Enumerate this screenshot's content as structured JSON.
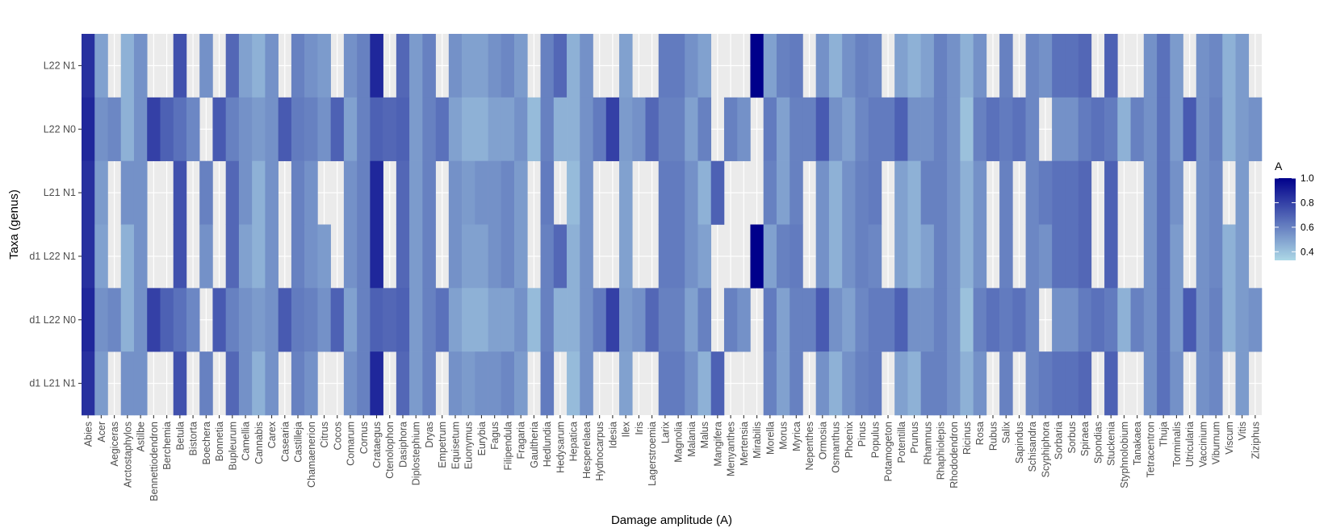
{
  "chart_data": {
    "type": "heatmap",
    "title": "",
    "xlabel": "Damage amplitude (A)",
    "ylabel": "Taxa (genus)",
    "x": [
      "Abies",
      "Acer",
      "Aegiceras",
      "Arctostaphylos",
      "Astilbe",
      "Bennettiodendron",
      "Berchemia",
      "Betula",
      "Bistorta",
      "Boechera",
      "Bonnetia",
      "Bupleurum",
      "Camellia",
      "Cannabis",
      "Carex",
      "Casearia",
      "Castilleja",
      "Chamaenerion",
      "Citrus",
      "Cocos",
      "Comarum",
      "Cornus",
      "Crataegus",
      "Ctenolophon",
      "Dasiphora",
      "Diplostephium",
      "Dryas",
      "Empetrum",
      "Equisetum",
      "Euonymus",
      "Eurybia",
      "Fagus",
      "Filipendula",
      "Fragaria",
      "Gaultheria",
      "Hedlundia",
      "Hedysarum",
      "Hepatica",
      "Hesperelaea",
      "Hydnocarpus",
      "Idesia",
      "Ilex",
      "Iris",
      "Lagerstroemia",
      "Larix",
      "Magnolia",
      "Malania",
      "Malus",
      "Mangifera",
      "Menyanthes",
      "Mertensia",
      "Mirabilis",
      "Morella",
      "Morus",
      "Myrica",
      "Nepenthes",
      "Ormosia",
      "Osmanthus",
      "Phoenix",
      "Pinus",
      "Populus",
      "Potamogeton",
      "Potentilla",
      "Prunus",
      "Rhamnus",
      "Rhaphiolepis",
      "Rhododendron",
      "Ricinus",
      "Rosa",
      "Rubus",
      "Salix",
      "Sapindus",
      "Schisandra",
      "Scyphiphora",
      "Sorbaria",
      "Sorbus",
      "Spiraea",
      "Spondias",
      "Stuckenia",
      "Styphnolobium",
      "Tanakaea",
      "Tetracentron",
      "Thuja",
      "Torminalis",
      "Utricularia",
      "Vaccinium",
      "Viburnum",
      "Viscum",
      "Vitis",
      "Ziziphus"
    ],
    "y": [
      "L22 N1",
      "L22 N0",
      "L21 N1",
      "d1 L22 N1",
      "d1 L22 N0",
      "d1 L21 N1"
    ],
    "values": {
      "L22 N1": [
        0.85,
        0.5,
        null,
        0.45,
        0.55,
        null,
        null,
        0.75,
        null,
        0.55,
        null,
        0.68,
        0.5,
        0.45,
        0.55,
        null,
        0.6,
        0.55,
        0.52,
        null,
        0.55,
        0.6,
        0.88,
        null,
        0.68,
        0.52,
        0.6,
        null,
        0.55,
        0.5,
        0.5,
        0.55,
        0.58,
        0.52,
        null,
        0.6,
        0.68,
        0.45,
        0.55,
        null,
        null,
        0.5,
        null,
        null,
        0.62,
        0.62,
        0.55,
        0.5,
        null,
        null,
        null,
        1.0,
        0.5,
        0.6,
        0.62,
        null,
        0.55,
        0.45,
        0.55,
        0.6,
        0.58,
        null,
        0.5,
        0.45,
        0.5,
        0.6,
        0.55,
        0.45,
        0.55,
        null,
        0.6,
        null,
        0.58,
        0.55,
        0.65,
        0.65,
        0.68,
        null,
        0.7,
        null,
        null,
        0.55,
        0.65,
        0.52,
        null,
        0.55,
        0.58,
        0.45,
        0.52,
        null
      ],
      "L22 N0": [
        0.88,
        0.55,
        0.58,
        0.45,
        0.55,
        0.8,
        0.7,
        0.65,
        0.58,
        null,
        0.72,
        0.6,
        0.55,
        0.52,
        0.55,
        0.72,
        0.62,
        0.6,
        0.55,
        0.7,
        0.5,
        0.6,
        0.7,
        0.68,
        0.7,
        0.52,
        0.6,
        0.65,
        0.5,
        0.45,
        0.45,
        0.5,
        0.5,
        0.55,
        0.42,
        0.6,
        0.45,
        0.45,
        0.55,
        0.62,
        0.8,
        0.52,
        0.55,
        0.68,
        0.6,
        0.6,
        0.5,
        0.6,
        null,
        0.6,
        0.55,
        null,
        0.62,
        0.5,
        0.6,
        0.6,
        0.72,
        0.55,
        0.5,
        0.58,
        0.62,
        0.62,
        0.7,
        0.55,
        0.55,
        0.6,
        0.55,
        0.4,
        0.6,
        0.65,
        0.62,
        0.65,
        0.58,
        null,
        0.55,
        0.55,
        0.62,
        0.65,
        0.62,
        0.45,
        0.6,
        0.55,
        0.65,
        0.52,
        0.72,
        0.55,
        0.6,
        0.45,
        0.52,
        0.55
      ],
      "L21 N1": [
        0.85,
        0.52,
        null,
        0.55,
        0.55,
        null,
        null,
        0.75,
        null,
        0.6,
        null,
        0.68,
        0.55,
        0.45,
        0.55,
        null,
        0.6,
        0.55,
        null,
        null,
        0.55,
        0.6,
        0.88,
        null,
        0.68,
        0.52,
        0.6,
        null,
        0.55,
        0.52,
        0.55,
        0.55,
        0.58,
        0.52,
        null,
        0.62,
        null,
        0.42,
        0.55,
        null,
        null,
        0.5,
        null,
        null,
        0.62,
        0.62,
        0.55,
        0.45,
        0.7,
        null,
        null,
        null,
        0.6,
        0.5,
        0.6,
        null,
        0.55,
        0.45,
        0.55,
        0.6,
        0.62,
        null,
        0.5,
        0.45,
        0.6,
        0.6,
        0.55,
        0.45,
        0.55,
        null,
        0.6,
        null,
        0.58,
        0.62,
        0.65,
        0.65,
        0.68,
        null,
        0.7,
        null,
        null,
        0.55,
        0.65,
        0.55,
        null,
        0.55,
        0.58,
        null,
        0.52,
        null
      ],
      "d1 L22 N1": [
        0.85,
        0.5,
        null,
        0.45,
        0.55,
        null,
        null,
        0.75,
        null,
        0.55,
        null,
        0.68,
        0.5,
        0.45,
        0.55,
        null,
        0.6,
        0.55,
        0.52,
        null,
        0.55,
        0.6,
        0.88,
        null,
        0.68,
        0.52,
        0.6,
        null,
        0.55,
        0.5,
        0.5,
        0.55,
        0.58,
        0.52,
        null,
        0.6,
        0.68,
        0.45,
        0.55,
        null,
        null,
        0.5,
        null,
        null,
        0.62,
        0.62,
        0.55,
        0.5,
        null,
        null,
        null,
        1.0,
        0.5,
        0.6,
        0.62,
        null,
        0.55,
        0.45,
        0.55,
        0.6,
        0.58,
        null,
        0.5,
        0.45,
        0.5,
        0.6,
        0.55,
        0.45,
        0.55,
        null,
        0.6,
        null,
        0.58,
        0.55,
        0.65,
        0.65,
        0.68,
        null,
        0.7,
        null,
        null,
        0.55,
        0.65,
        0.52,
        null,
        0.55,
        0.58,
        0.45,
        0.52,
        null
      ],
      "d1 L22 N0": [
        0.88,
        0.55,
        0.58,
        0.45,
        0.55,
        0.8,
        0.7,
        0.65,
        0.58,
        null,
        0.72,
        0.6,
        0.55,
        0.52,
        0.55,
        0.72,
        0.62,
        0.6,
        0.55,
        0.7,
        0.5,
        0.6,
        0.7,
        0.68,
        0.7,
        0.52,
        0.6,
        0.65,
        0.5,
        0.45,
        0.45,
        0.5,
        0.5,
        0.55,
        0.42,
        0.6,
        0.45,
        0.45,
        0.55,
        0.62,
        0.8,
        0.52,
        0.55,
        0.68,
        0.6,
        0.6,
        0.5,
        0.6,
        null,
        0.6,
        0.55,
        null,
        0.62,
        0.5,
        0.6,
        0.6,
        0.72,
        0.55,
        0.5,
        0.58,
        0.62,
        0.62,
        0.7,
        0.55,
        0.55,
        0.6,
        0.55,
        0.4,
        0.6,
        0.65,
        0.62,
        0.65,
        0.58,
        null,
        0.55,
        0.55,
        0.62,
        0.65,
        0.62,
        0.45,
        0.6,
        0.55,
        0.65,
        0.52,
        0.72,
        0.55,
        0.6,
        0.45,
        0.52,
        0.55
      ],
      "d1 L21 N1": [
        0.85,
        0.52,
        null,
        0.55,
        0.55,
        null,
        null,
        0.75,
        null,
        0.6,
        null,
        0.68,
        0.55,
        0.45,
        0.55,
        null,
        0.6,
        0.55,
        null,
        null,
        0.55,
        0.6,
        0.88,
        null,
        0.68,
        0.52,
        0.6,
        null,
        0.55,
        0.52,
        0.55,
        0.55,
        0.58,
        0.52,
        null,
        0.62,
        null,
        0.42,
        0.55,
        null,
        null,
        0.5,
        null,
        null,
        0.62,
        0.62,
        0.55,
        0.45,
        0.7,
        null,
        null,
        null,
        0.6,
        0.5,
        0.6,
        null,
        0.55,
        0.45,
        0.55,
        0.6,
        0.62,
        null,
        0.5,
        0.45,
        0.6,
        0.6,
        0.55,
        0.45,
        0.55,
        null,
        0.6,
        null,
        0.58,
        0.62,
        0.65,
        0.65,
        0.68,
        null,
        0.7,
        null,
        null,
        0.55,
        0.65,
        0.55,
        null,
        0.55,
        0.58,
        null,
        0.52,
        null
      ]
    },
    "color_scale": {
      "title": "A",
      "low_color": "#ADD8E6",
      "high_color": "#00008B",
      "range": [
        0.33,
        1.0
      ],
      "ticks": [
        "0.4",
        "0.6",
        "0.8",
        "1.0"
      ],
      "tick_values": [
        0.4,
        0.6,
        0.8,
        1.0
      ]
    },
    "legend": "right",
    "grid": true,
    "panel_background": "#EBEBEB"
  }
}
